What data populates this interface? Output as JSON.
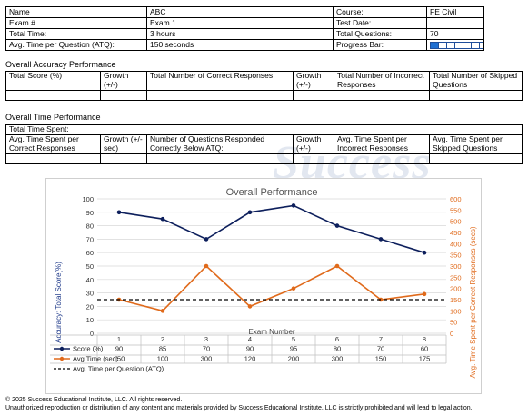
{
  "info": {
    "name_label": "Name",
    "name_value": "ABC",
    "course_label": "Course:",
    "course_value": "FE Civil",
    "exam_label": "Exam #",
    "exam_value": "Exam 1",
    "test_date_label": "Test Date:",
    "test_date_value": "",
    "total_time_label": "Total Time:",
    "total_time_value": "3 hours",
    "total_questions_label": "Total Questions:",
    "total_questions_value": "70",
    "atq_label": "Avg. Time per Question (ATQ):",
    "atq_value": "150 seconds",
    "progress_label": "Progress Bar:",
    "progress_cells_total": 8,
    "progress_cells_filled": 1
  },
  "accuracy": {
    "title": "Overall Accuracy Performance",
    "headers": [
      "Total Score (%)",
      "Growth (+/-)",
      "Total Number of Correct Responses",
      "Growth (+/-)",
      "Total Number of Incorrect Responses",
      "Total Number of Skipped Questions"
    ]
  },
  "time_perf": {
    "title": "Overall Time Performance",
    "total_time_spent_label": "Total Time Spent:",
    "headers": [
      "Avg. Time Spent per Correct Responses",
      "Growth (+/- sec)",
      "Number of Questions Responded Correctly Below ATQ:",
      "Growth (+/-)",
      "Avg. Time Spent per Incorrect Responses",
      "Avg. Time Spent per Skipped Questions"
    ]
  },
  "watermark": "Success",
  "chart_data": {
    "type": "line",
    "title": "Overall Performance",
    "xlabel": "Exam Number",
    "ylabel": "Accuracy: Total Score(%)",
    "y2label": "Avg. Time Spent per Correct Responses (secs)",
    "categories": [
      "1",
      "2",
      "3",
      "4",
      "5",
      "6",
      "7",
      "8"
    ],
    "ylim": [
      0,
      100
    ],
    "ytick_step": 10,
    "y2lim": [
      0,
      600
    ],
    "y2tick_step": 50,
    "grid": true,
    "series": [
      {
        "name": "Score (%)",
        "axis": "left",
        "color": "#0d1f5c",
        "values": [
          90,
          85,
          70,
          90,
          95,
          80,
          70,
          60
        ]
      },
      {
        "name": "Avg Time (sec)",
        "axis": "right",
        "color": "#e06a1b",
        "values": [
          150,
          100,
          300,
          120,
          200,
          300,
          150,
          175
        ]
      },
      {
        "name": "Avg. Time per Question (ATQ)",
        "axis": "right",
        "color": "#000000",
        "dashed": true,
        "constant": 150
      }
    ]
  },
  "footer": {
    "line1": "© 2025 Success Educational Institute, LLC. All rights reserved.",
    "line2": "Unauthorized reproduction or distribution of any content and materials provided by Success Educational Institute, LLC is strictly prohibited and will lead to legal action."
  }
}
